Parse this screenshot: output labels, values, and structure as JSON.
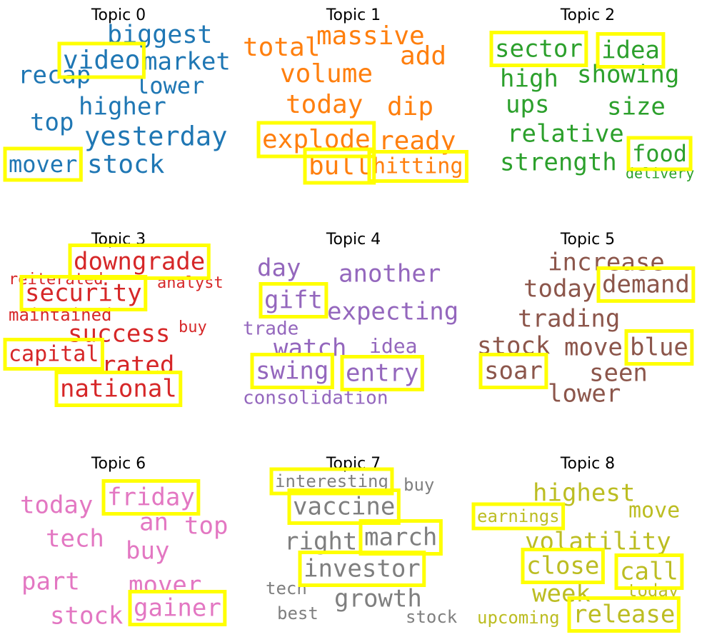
{
  "panels": [
    {
      "title": "Topic 0",
      "color": "#1f77b4",
      "words": [
        {
          "text": "biggest"
        },
        {
          "text": "video",
          "highlighted": true
        },
        {
          "text": "market"
        },
        {
          "text": "recap"
        },
        {
          "text": "lower"
        },
        {
          "text": "higher"
        },
        {
          "text": "top"
        },
        {
          "text": "yesterday"
        },
        {
          "text": "mover",
          "highlighted": true
        },
        {
          "text": "stock"
        }
      ]
    },
    {
      "title": "Topic 1",
      "color": "#ff7f0e",
      "words": [
        {
          "text": "massive"
        },
        {
          "text": "total"
        },
        {
          "text": "add"
        },
        {
          "text": "volume"
        },
        {
          "text": "today"
        },
        {
          "text": "dip"
        },
        {
          "text": "explode",
          "highlighted": true
        },
        {
          "text": "ready"
        },
        {
          "text": "bull",
          "highlighted": true
        },
        {
          "text": "hitting",
          "highlighted": true
        }
      ]
    },
    {
      "title": "Topic 2",
      "color": "#2ca02c",
      "words": [
        {
          "text": "sector",
          "highlighted": true
        },
        {
          "text": "idea",
          "highlighted": true
        },
        {
          "text": "high"
        },
        {
          "text": "showing"
        },
        {
          "text": "ups"
        },
        {
          "text": "size"
        },
        {
          "text": "relative"
        },
        {
          "text": "strength"
        },
        {
          "text": "food",
          "highlighted": true
        },
        {
          "text": "delivery"
        }
      ]
    },
    {
      "title": "Topic 3",
      "color": "#d62728",
      "words": [
        {
          "text": "downgrade",
          "highlighted": true
        },
        {
          "text": "reiterated"
        },
        {
          "text": "analyst"
        },
        {
          "text": "security",
          "highlighted": true
        },
        {
          "text": "maintained"
        },
        {
          "text": "buy"
        },
        {
          "text": "success"
        },
        {
          "text": "capital",
          "highlighted": true
        },
        {
          "text": "rated"
        },
        {
          "text": "national",
          "highlighted": true
        }
      ]
    },
    {
      "title": "Topic 4",
      "color": "#9467bd",
      "words": [
        {
          "text": "day"
        },
        {
          "text": "another"
        },
        {
          "text": "gift",
          "highlighted": true
        },
        {
          "text": "expecting"
        },
        {
          "text": "trade"
        },
        {
          "text": "watch"
        },
        {
          "text": "idea"
        },
        {
          "text": "swing",
          "highlighted": true
        },
        {
          "text": "entry",
          "highlighted": true
        },
        {
          "text": "consolidation"
        }
      ]
    },
    {
      "title": "Topic 5",
      "color": "#8c564b",
      "words": [
        {
          "text": "increase"
        },
        {
          "text": "today"
        },
        {
          "text": "demand",
          "highlighted": true
        },
        {
          "text": "trading"
        },
        {
          "text": "stock"
        },
        {
          "text": "move"
        },
        {
          "text": "blue",
          "highlighted": true
        },
        {
          "text": "soar",
          "highlighted": true
        },
        {
          "text": "seen"
        },
        {
          "text": "lower"
        }
      ]
    },
    {
      "title": "Topic 6",
      "color": "#e377c2",
      "words": [
        {
          "text": "today"
        },
        {
          "text": "friday",
          "highlighted": true
        },
        {
          "text": "an"
        },
        {
          "text": "top"
        },
        {
          "text": "tech"
        },
        {
          "text": "buy"
        },
        {
          "text": "part"
        },
        {
          "text": "mover"
        },
        {
          "text": "stock"
        },
        {
          "text": "gainer",
          "highlighted": true
        }
      ]
    },
    {
      "title": "Topic 7",
      "color": "#7f7f7f",
      "words": [
        {
          "text": "interesting",
          "highlighted": true
        },
        {
          "text": "buy"
        },
        {
          "text": "vaccine",
          "highlighted": true
        },
        {
          "text": "right"
        },
        {
          "text": "march",
          "highlighted": true
        },
        {
          "text": "investor",
          "highlighted": true
        },
        {
          "text": "tech"
        },
        {
          "text": "growth"
        },
        {
          "text": "best"
        },
        {
          "text": "stock"
        }
      ]
    },
    {
      "title": "Topic 8",
      "color": "#bcbd22",
      "words": [
        {
          "text": "highest"
        },
        {
          "text": "move"
        },
        {
          "text": "earnings",
          "highlighted": true
        },
        {
          "text": "volatility"
        },
        {
          "text": "close",
          "highlighted": true
        },
        {
          "text": "call",
          "highlighted": true
        },
        {
          "text": "week"
        },
        {
          "text": "today"
        },
        {
          "text": "upcoming"
        },
        {
          "text": "release",
          "highlighted": true
        }
      ]
    }
  ]
}
